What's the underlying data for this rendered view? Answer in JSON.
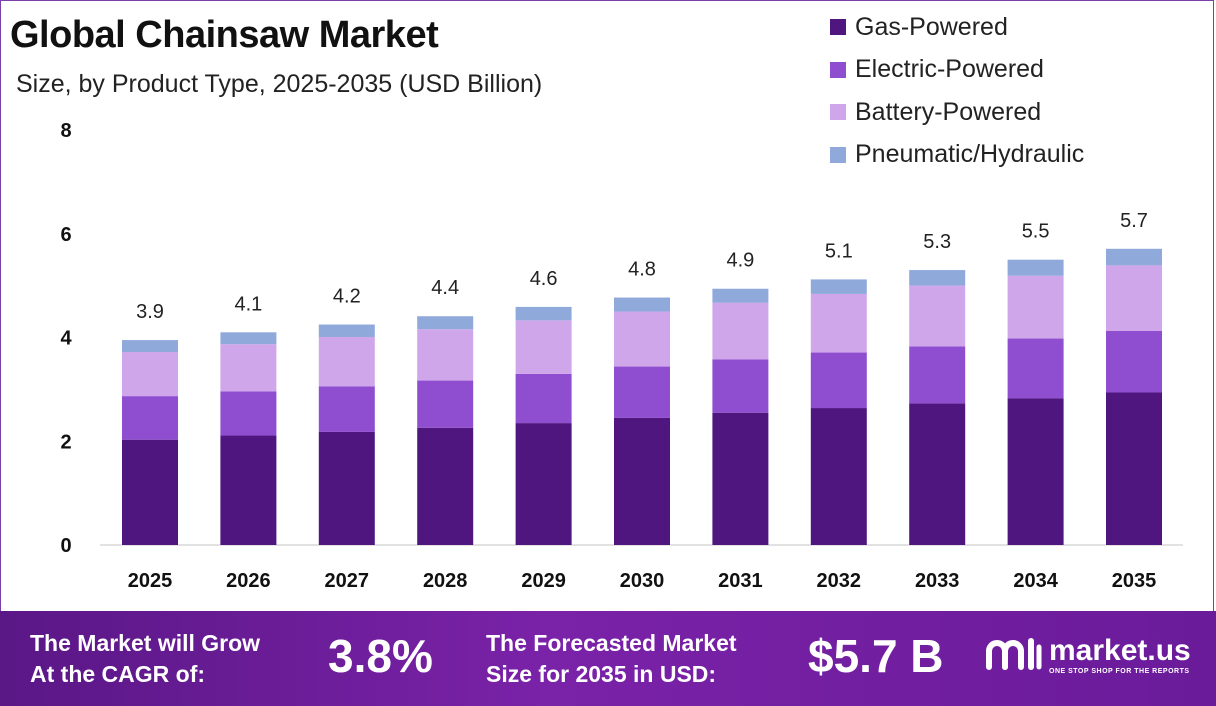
{
  "header": {
    "title": "Global Chainsaw Market",
    "subtitle": "Size, by Product Type, 2025-2035 (USD Billion)"
  },
  "chart_data": {
    "type": "bar",
    "stacked": true,
    "title": "Global Chainsaw Market",
    "subtitle": "Size, by Product Type, 2025-2035 (USD Billion)",
    "categories": [
      "2025",
      "2026",
      "2027",
      "2028",
      "2029",
      "2030",
      "2031",
      "2032",
      "2033",
      "2034",
      "2035"
    ],
    "series": [
      {
        "name": "Gas-Powered",
        "color": "#4f1680",
        "values": [
          2.03,
          2.11,
          2.18,
          2.26,
          2.35,
          2.45,
          2.55,
          2.64,
          2.73,
          2.83,
          2.94
        ]
      },
      {
        "name": "Electric-Powered",
        "color": "#8f4dcf",
        "values": [
          0.84,
          0.85,
          0.88,
          0.91,
          0.95,
          0.99,
          1.03,
          1.07,
          1.1,
          1.15,
          1.19
        ]
      },
      {
        "name": "Battery-Powered",
        "color": "#d0a6ea",
        "values": [
          0.85,
          0.91,
          0.95,
          0.99,
          1.03,
          1.06,
          1.09,
          1.13,
          1.17,
          1.21,
          1.26
        ]
      },
      {
        "name": "Pneumatic/Hydraulic",
        "color": "#8fa9db",
        "values": [
          0.23,
          0.23,
          0.24,
          0.25,
          0.26,
          0.27,
          0.27,
          0.28,
          0.3,
          0.31,
          0.32
        ]
      }
    ],
    "totals": [
      "3.9",
      "4.1",
      "4.2",
      "4.4",
      "4.6",
      "4.8",
      "4.9",
      "5.1",
      "5.3",
      "5.5",
      "5.7"
    ],
    "ylim": [
      0,
      8
    ],
    "yticks": [
      "0",
      "2",
      "4",
      "6",
      "8"
    ],
    "grid": false,
    "legend_position": "top-right"
  },
  "footer": {
    "cagr_label_line1": "The Market will Grow",
    "cagr_label_line2": "At the CAGR of:",
    "cagr_value": "3.8%",
    "forecast_label_line1": "The Forecasted Market",
    "forecast_label_line2": "Size for 2035 in USD:",
    "forecast_value": "$5.7 B",
    "brand_name": "market.us",
    "brand_tagline": "ONE STOP SHOP FOR THE REPORTS"
  }
}
